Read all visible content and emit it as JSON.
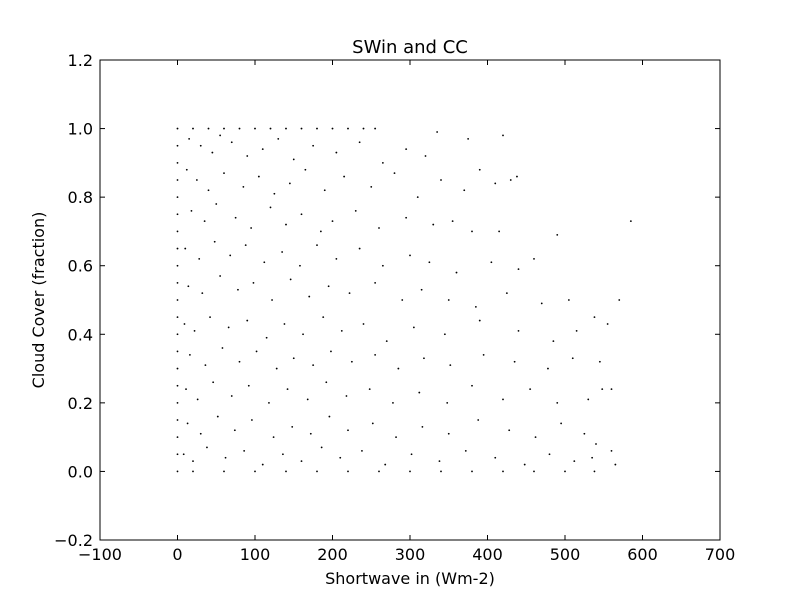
{
  "chart_data": {
    "type": "scatter",
    "title": "SWin and CC",
    "xlabel": "Shortwave in (Wm-2)",
    "ylabel": "Cloud Cover (fraction)",
    "xlim": [
      -100,
      700
    ],
    "ylim": [
      -0.2,
      1.2
    ],
    "xticks": [
      -100,
      0,
      100,
      200,
      300,
      400,
      500,
      600,
      700
    ],
    "xtick_labels": [
      "−100",
      "0",
      "100",
      "200",
      "300",
      "400",
      "500",
      "600",
      "700"
    ],
    "yticks": [
      -0.2,
      0.0,
      0.2,
      0.4,
      0.6,
      0.8,
      1.0,
      1.2
    ],
    "ytick_labels": [
      "−0.2",
      "0.0",
      "0.2",
      "0.4",
      "0.6",
      "0.8",
      "1.0",
      "1.2"
    ],
    "grid": false,
    "marker_color": "#000000",
    "series": [
      {
        "points": [
          [
            0,
            0.0
          ],
          [
            0,
            0.05
          ],
          [
            0,
            0.1
          ],
          [
            0,
            0.15
          ],
          [
            0,
            0.2
          ],
          [
            0,
            0.25
          ],
          [
            0,
            0.3
          ],
          [
            0,
            0.35
          ],
          [
            0,
            0.4
          ],
          [
            0,
            0.45
          ],
          [
            0,
            0.5
          ],
          [
            0,
            0.55
          ],
          [
            0,
            0.6
          ],
          [
            0,
            0.65
          ],
          [
            0,
            0.7
          ],
          [
            0,
            0.75
          ],
          [
            0,
            0.8
          ],
          [
            0,
            0.85
          ],
          [
            0,
            0.9
          ],
          [
            0,
            0.95
          ],
          [
            0,
            1.0
          ],
          [
            20,
            1.0
          ],
          [
            40,
            1.0
          ],
          [
            60,
            1.0
          ],
          [
            80,
            1.0
          ],
          [
            100,
            1.0
          ],
          [
            120,
            1.0
          ],
          [
            140,
            1.0
          ],
          [
            160,
            1.0
          ],
          [
            180,
            1.0
          ],
          [
            200,
            1.0
          ],
          [
            220,
            1.0
          ],
          [
            240,
            1.0
          ],
          [
            255,
            1.0
          ],
          [
            20,
            0.0
          ],
          [
            60,
            0.0
          ],
          [
            100,
            0.0
          ],
          [
            140,
            0.0
          ],
          [
            180,
            0.0
          ],
          [
            220,
            0.0
          ],
          [
            260,
            0.0
          ],
          [
            300,
            0.0
          ],
          [
            340,
            0.0
          ],
          [
            380,
            0.0
          ],
          [
            420,
            0.0
          ],
          [
            460,
            0.0
          ],
          [
            500,
            0.0
          ],
          [
            538,
            0.0
          ],
          [
            15,
            0.97
          ],
          [
            30,
            0.95
          ],
          [
            45,
            0.93
          ],
          [
            55,
            0.98
          ],
          [
            70,
            0.96
          ],
          [
            90,
            0.92
          ],
          [
            110,
            0.94
          ],
          [
            130,
            0.97
          ],
          [
            150,
            0.91
          ],
          [
            175,
            0.95
          ],
          [
            205,
            0.93
          ],
          [
            235,
            0.96
          ],
          [
            265,
            0.9
          ],
          [
            295,
            0.94
          ],
          [
            320,
            0.92
          ],
          [
            335,
            0.99
          ],
          [
            375,
            0.97
          ],
          [
            420,
            0.98
          ],
          [
            12,
            0.88
          ],
          [
            25,
            0.85
          ],
          [
            40,
            0.82
          ],
          [
            60,
            0.87
          ],
          [
            85,
            0.83
          ],
          [
            105,
            0.86
          ],
          [
            125,
            0.81
          ],
          [
            145,
            0.84
          ],
          [
            165,
            0.88
          ],
          [
            190,
            0.82
          ],
          [
            215,
            0.86
          ],
          [
            250,
            0.83
          ],
          [
            280,
            0.87
          ],
          [
            310,
            0.8
          ],
          [
            340,
            0.85
          ],
          [
            370,
            0.82
          ],
          [
            390,
            0.88
          ],
          [
            410,
            0.84
          ],
          [
            430,
            0.85
          ],
          [
            438,
            0.86
          ],
          [
            18,
            0.76
          ],
          [
            35,
            0.73
          ],
          [
            50,
            0.78
          ],
          [
            75,
            0.74
          ],
          [
            95,
            0.71
          ],
          [
            120,
            0.77
          ],
          [
            140,
            0.72
          ],
          [
            160,
            0.75
          ],
          [
            185,
            0.7
          ],
          [
            200,
            0.73
          ],
          [
            230,
            0.76
          ],
          [
            260,
            0.71
          ],
          [
            295,
            0.74
          ],
          [
            330,
            0.72
          ],
          [
            355,
            0.73
          ],
          [
            380,
            0.7
          ],
          [
            415,
            0.7
          ],
          [
            490,
            0.69
          ],
          [
            585,
            0.73
          ],
          [
            10,
            0.65
          ],
          [
            28,
            0.62
          ],
          [
            48,
            0.67
          ],
          [
            68,
            0.63
          ],
          [
            88,
            0.66
          ],
          [
            112,
            0.61
          ],
          [
            135,
            0.64
          ],
          [
            158,
            0.6
          ],
          [
            180,
            0.66
          ],
          [
            205,
            0.62
          ],
          [
            235,
            0.65
          ],
          [
            265,
            0.6
          ],
          [
            300,
            0.63
          ],
          [
            325,
            0.61
          ],
          [
            360,
            0.58
          ],
          [
            405,
            0.61
          ],
          [
            440,
            0.59
          ],
          [
            460,
            0.62
          ],
          [
            14,
            0.54
          ],
          [
            32,
            0.52
          ],
          [
            55,
            0.57
          ],
          [
            78,
            0.53
          ],
          [
            98,
            0.55
          ],
          [
            122,
            0.5
          ],
          [
            146,
            0.56
          ],
          [
            170,
            0.51
          ],
          [
            195,
            0.54
          ],
          [
            222,
            0.52
          ],
          [
            255,
            0.55
          ],
          [
            290,
            0.5
          ],
          [
            315,
            0.53
          ],
          [
            350,
            0.5
          ],
          [
            385,
            0.48
          ],
          [
            425,
            0.52
          ],
          [
            470,
            0.49
          ],
          [
            505,
            0.5
          ],
          [
            570,
            0.5
          ],
          [
            9,
            0.43
          ],
          [
            22,
            0.41
          ],
          [
            42,
            0.45
          ],
          [
            66,
            0.42
          ],
          [
            90,
            0.44
          ],
          [
            115,
            0.39
          ],
          [
            138,
            0.43
          ],
          [
            162,
            0.4
          ],
          [
            188,
            0.45
          ],
          [
            212,
            0.41
          ],
          [
            240,
            0.43
          ],
          [
            270,
            0.38
          ],
          [
            305,
            0.42
          ],
          [
            345,
            0.4
          ],
          [
            390,
            0.44
          ],
          [
            440,
            0.41
          ],
          [
            485,
            0.38
          ],
          [
            515,
            0.41
          ],
          [
            555,
            0.43
          ],
          [
            538,
            0.45
          ],
          [
            16,
            0.34
          ],
          [
            36,
            0.31
          ],
          [
            58,
            0.36
          ],
          [
            80,
            0.32
          ],
          [
            102,
            0.35
          ],
          [
            128,
            0.3
          ],
          [
            150,
            0.33
          ],
          [
            175,
            0.31
          ],
          [
            198,
            0.35
          ],
          [
            225,
            0.32
          ],
          [
            255,
            0.34
          ],
          [
            285,
            0.3
          ],
          [
            318,
            0.33
          ],
          [
            352,
            0.31
          ],
          [
            395,
            0.34
          ],
          [
            435,
            0.32
          ],
          [
            478,
            0.3
          ],
          [
            510,
            0.33
          ],
          [
            545,
            0.32
          ],
          [
            11,
            0.24
          ],
          [
            26,
            0.21
          ],
          [
            46,
            0.26
          ],
          [
            70,
            0.22
          ],
          [
            92,
            0.25
          ],
          [
            118,
            0.2
          ],
          [
            142,
            0.24
          ],
          [
            168,
            0.21
          ],
          [
            192,
            0.26
          ],
          [
            218,
            0.22
          ],
          [
            248,
            0.24
          ],
          [
            278,
            0.2
          ],
          [
            312,
            0.23
          ],
          [
            348,
            0.2
          ],
          [
            380,
            0.25
          ],
          [
            420,
            0.21
          ],
          [
            455,
            0.24
          ],
          [
            490,
            0.2
          ],
          [
            530,
            0.21
          ],
          [
            548,
            0.24
          ],
          [
            560,
            0.24
          ],
          [
            13,
            0.14
          ],
          [
            30,
            0.11
          ],
          [
            52,
            0.16
          ],
          [
            74,
            0.12
          ],
          [
            96,
            0.15
          ],
          [
            124,
            0.1
          ],
          [
            148,
            0.13
          ],
          [
            172,
            0.11
          ],
          [
            196,
            0.16
          ],
          [
            220,
            0.12
          ],
          [
            252,
            0.14
          ],
          [
            282,
            0.1
          ],
          [
            316,
            0.13
          ],
          [
            350,
            0.11
          ],
          [
            388,
            0.15
          ],
          [
            428,
            0.12
          ],
          [
            462,
            0.1
          ],
          [
            495,
            0.14
          ],
          [
            525,
            0.11
          ],
          [
            540,
            0.08
          ],
          [
            8,
            0.05
          ],
          [
            20,
            0.03
          ],
          [
            38,
            0.07
          ],
          [
            62,
            0.04
          ],
          [
            86,
            0.06
          ],
          [
            110,
            0.02
          ],
          [
            136,
            0.05
          ],
          [
            160,
            0.03
          ],
          [
            186,
            0.07
          ],
          [
            210,
            0.04
          ],
          [
            238,
            0.06
          ],
          [
            268,
            0.02
          ],
          [
            302,
            0.05
          ],
          [
            338,
            0.03
          ],
          [
            372,
            0.06
          ],
          [
            410,
            0.04
          ],
          [
            448,
            0.02
          ],
          [
            480,
            0.05
          ],
          [
            512,
            0.03
          ],
          [
            535,
            0.04
          ],
          [
            560,
            0.06
          ],
          [
            565,
            0.02
          ]
        ]
      }
    ]
  }
}
